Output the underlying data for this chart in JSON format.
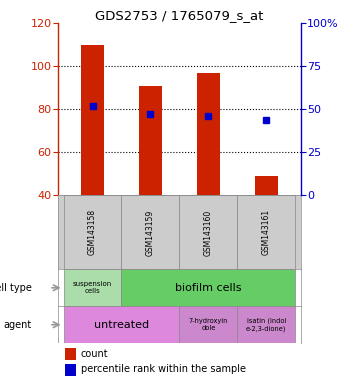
{
  "title": "GDS2753 / 1765079_s_at",
  "samples": [
    "GSM143158",
    "GSM143159",
    "GSM143160",
    "GSM143161"
  ],
  "counts": [
    110,
    91,
    97,
    49
  ],
  "percentile_ranks": [
    52,
    47,
    46,
    44
  ],
  "ylim_left": [
    40,
    120
  ],
  "yticks_left": [
    40,
    60,
    80,
    100,
    120
  ],
  "ylim_right": [
    0,
    100
  ],
  "yticks_right": [
    0,
    25,
    50,
    75,
    100
  ],
  "bar_color": "#cc2200",
  "dot_color": "#0000cc",
  "cell_type_colors": [
    "#aaddaa",
    "#66cc66"
  ],
  "cell_type_labels": [
    "suspension\ncells",
    "biofilm cells"
  ],
  "cell_type_spans": [
    1,
    3
  ],
  "agent_colors": [
    "#dd88dd",
    "#cc88cc",
    "#cc88cc"
  ],
  "agent_labels": [
    "untreated",
    "7-hydroxyin\ndole",
    "isatin (indol\ne-2,3-dione)"
  ],
  "agent_spans": [
    2,
    1,
    1
  ],
  "sample_box_color": "#cccccc",
  "label_cell_type": "cell type",
  "label_agent": "agent"
}
